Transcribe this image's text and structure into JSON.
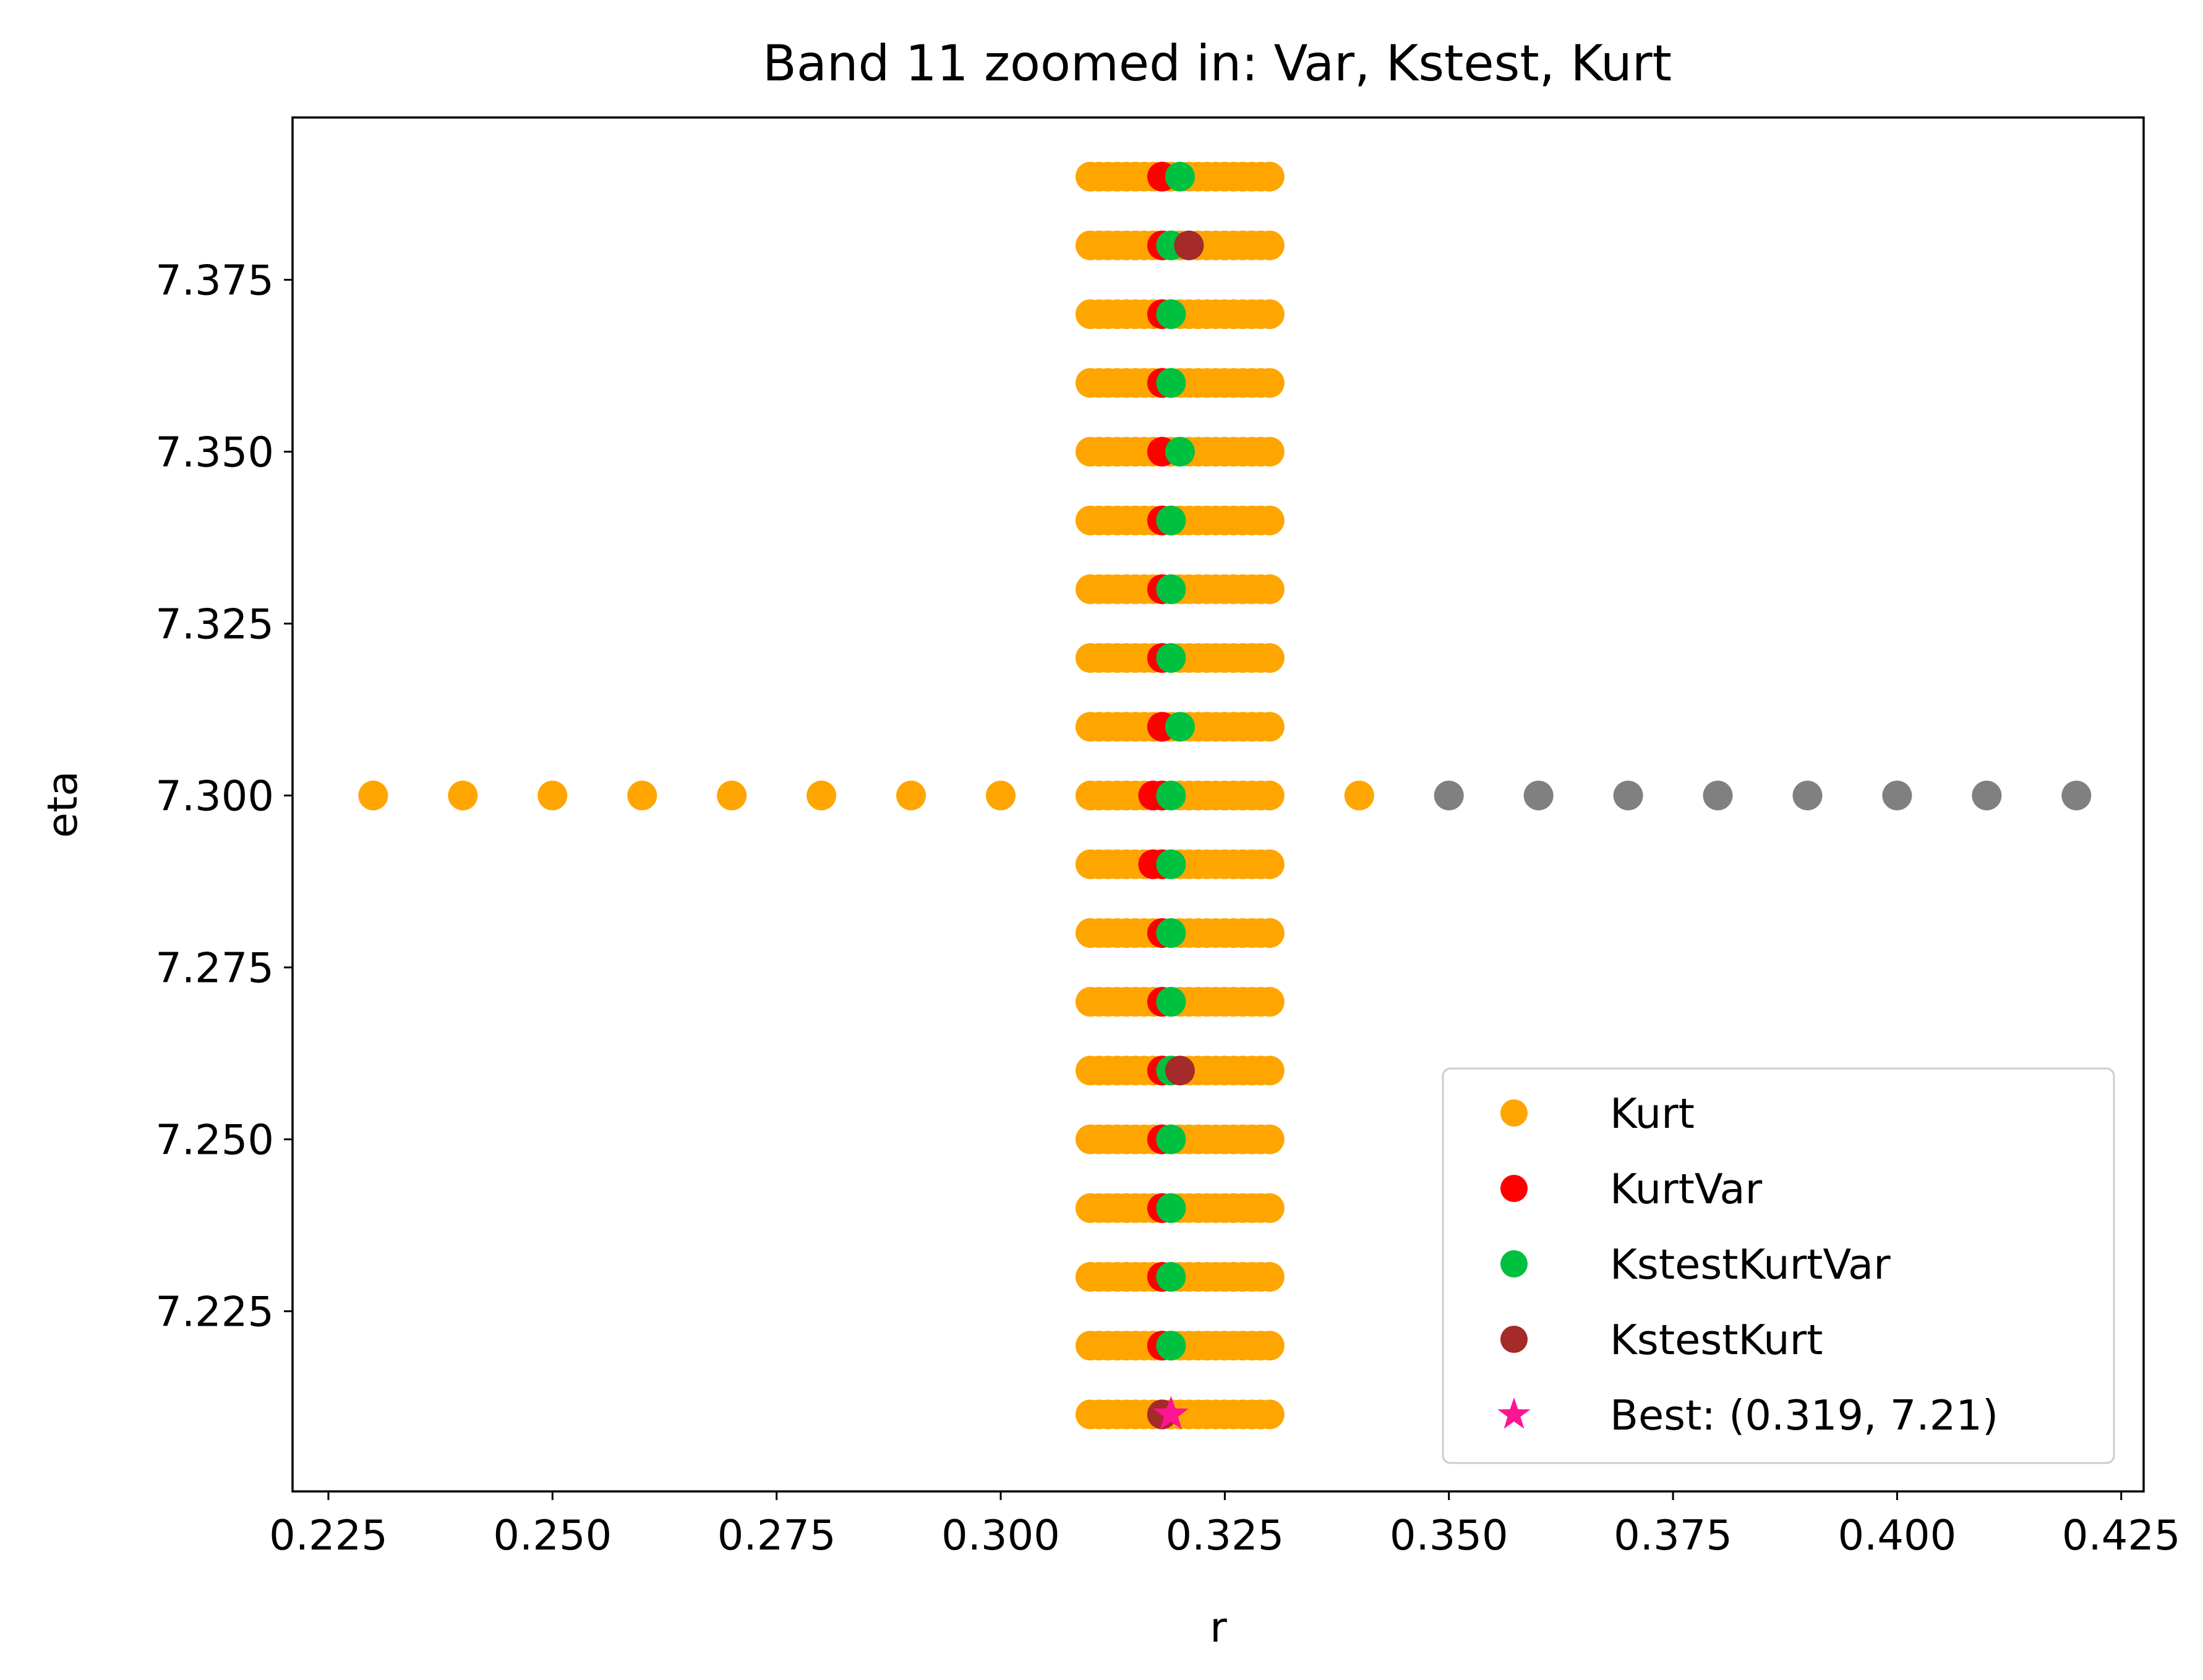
{
  "chart_data": {
    "type": "scatter",
    "title": "Band 11 zoomed in: Var, Kstest, Kurt",
    "xlabel": "r",
    "ylabel": "eta",
    "xlim": [
      0.221,
      0.4275
    ],
    "ylim": [
      7.1988,
      7.3986
    ],
    "xticks": [
      "0.225",
      "0.250",
      "0.275",
      "0.300",
      "0.325",
      "0.350",
      "0.375",
      "0.400",
      "0.425"
    ],
    "yticks": [
      "7.225",
      "7.250",
      "7.275",
      "7.300",
      "7.325",
      "7.350",
      "7.375"
    ],
    "grid": false,
    "legend_position": "lower right",
    "series": [
      {
        "name": "Gray",
        "in_legend": false,
        "color": "#808080",
        "marker": "circle",
        "points": [
          [
            0.35,
            7.3
          ],
          [
            0.36,
            7.3
          ],
          [
            0.37,
            7.3
          ],
          [
            0.38,
            7.3
          ],
          [
            0.39,
            7.3
          ],
          [
            0.4,
            7.3
          ],
          [
            0.41,
            7.3
          ],
          [
            0.42,
            7.3
          ]
        ]
      },
      {
        "name": "Kurt",
        "in_legend": true,
        "color": "#ffa500",
        "marker": "circle",
        "points": [
          [
            0.23,
            7.3
          ],
          [
            0.24,
            7.3
          ],
          [
            0.25,
            7.3
          ],
          [
            0.26,
            7.3
          ],
          [
            0.27,
            7.3
          ],
          [
            0.28,
            7.3
          ],
          [
            0.29,
            7.3
          ],
          [
            0.3,
            7.3
          ],
          [
            0.34,
            7.3
          ]
        ],
        "grid_fill": {
          "r": [
            0.31,
            0.311,
            0.312,
            0.313,
            0.314,
            0.315,
            0.316,
            0.317,
            0.318,
            0.319,
            0.32,
            0.321,
            0.322,
            0.323,
            0.324,
            0.325,
            0.326,
            0.327,
            0.328,
            0.329,
            0.33
          ],
          "eta": [
            7.21,
            7.22,
            7.23,
            7.24,
            7.25,
            7.26,
            7.27,
            7.28,
            7.29,
            7.3,
            7.31,
            7.32,
            7.33,
            7.34,
            7.35,
            7.36,
            7.37,
            7.38,
            7.39
          ]
        }
      },
      {
        "name": "KurtVar",
        "in_legend": true,
        "color": "#ff0000",
        "marker": "circle",
        "points": [
          [
            0.318,
            7.21
          ],
          [
            0.318,
            7.22
          ],
          [
            0.318,
            7.23
          ],
          [
            0.318,
            7.24
          ],
          [
            0.318,
            7.25
          ],
          [
            0.318,
            7.26
          ],
          [
            0.318,
            7.27
          ],
          [
            0.318,
            7.28
          ],
          [
            0.318,
            7.29
          ],
          [
            0.317,
            7.29
          ],
          [
            0.318,
            7.3
          ],
          [
            0.317,
            7.3
          ],
          [
            0.318,
            7.31
          ],
          [
            0.318,
            7.32
          ],
          [
            0.318,
            7.33
          ],
          [
            0.318,
            7.34
          ],
          [
            0.318,
            7.35
          ],
          [
            0.318,
            7.36
          ],
          [
            0.318,
            7.37
          ],
          [
            0.318,
            7.38
          ],
          [
            0.318,
            7.39
          ]
        ]
      },
      {
        "name": "KstestKurtVar",
        "in_legend": true,
        "color": "#00c040",
        "marker": "circle",
        "points": [
          [
            0.32,
            7.39
          ],
          [
            0.319,
            7.38
          ],
          [
            0.319,
            7.37
          ],
          [
            0.319,
            7.36
          ],
          [
            0.32,
            7.35
          ],
          [
            0.319,
            7.34
          ],
          [
            0.319,
            7.33
          ],
          [
            0.319,
            7.32
          ],
          [
            0.32,
            7.31
          ],
          [
            0.319,
            7.3
          ],
          [
            0.319,
            7.29
          ],
          [
            0.319,
            7.28
          ],
          [
            0.319,
            7.27
          ],
          [
            0.319,
            7.26
          ],
          [
            0.319,
            7.25
          ],
          [
            0.319,
            7.24
          ],
          [
            0.319,
            7.23
          ],
          [
            0.319,
            7.22
          ]
        ]
      },
      {
        "name": "KstestKurt",
        "in_legend": true,
        "color": "#a52a2a",
        "marker": "circle",
        "points": [
          [
            0.321,
            7.38
          ],
          [
            0.32,
            7.26
          ],
          [
            0.318,
            7.21
          ]
        ]
      },
      {
        "name": "Best: (0.319, 7.21)",
        "in_legend": true,
        "color": "#ff1493",
        "marker": "star",
        "points": [
          [
            0.319,
            7.21
          ]
        ]
      }
    ]
  }
}
